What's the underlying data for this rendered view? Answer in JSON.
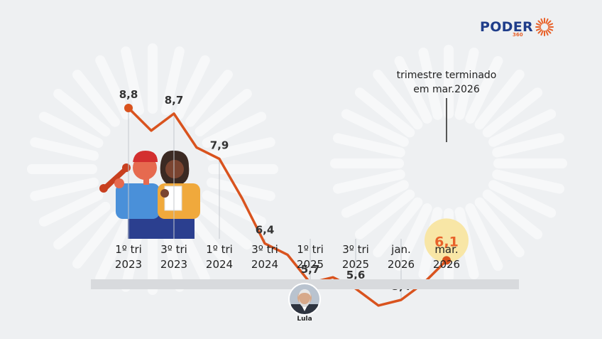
{
  "brand": {
    "name": "PODER",
    "suffix": "360"
  },
  "annotation": {
    "line1": "trimestre terminado",
    "line2": "em mar.2026"
  },
  "president": {
    "name": "Lula"
  },
  "colors": {
    "line": "#d9531e",
    "highlight": "#f8e6a6",
    "highlight_text": "#e8622a",
    "label_text": "#333333",
    "brand_blue": "#1f3d8a"
  },
  "chart_data": {
    "type": "line",
    "title": "",
    "xlabel": "",
    "ylabel": "",
    "grid": false,
    "ylim": [
      5.0,
      9.0
    ],
    "x": [
      "1º tri 2023",
      "",
      "3º tri 2023",
      "",
      "1º tri 2024",
      "",
      "3º tri 2024",
      "",
      "1º tri 2025",
      "",
      "3º tri 2025",
      "",
      "jan. 2026",
      "",
      "mar. 2026"
    ],
    "series": [
      {
        "values": [
          8.8,
          8.4,
          8.7,
          8.1,
          7.9,
          7.2,
          6.4,
          6.2,
          5.7,
          5.8,
          5.6,
          5.3,
          5.4,
          5.7,
          6.1
        ]
      }
    ],
    "labeled_points": [
      {
        "index": 0,
        "label": "8,8"
      },
      {
        "index": 2,
        "label": "8,7"
      },
      {
        "index": 4,
        "label": "7,9"
      },
      {
        "index": 6,
        "label": "6,4"
      },
      {
        "index": 8,
        "label": "5,7"
      },
      {
        "index": 10,
        "label": "5,6"
      },
      {
        "index": 12,
        "label": "5,4"
      },
      {
        "index": 14,
        "label": "6,1"
      }
    ],
    "ticks": [
      {
        "index": 0,
        "line1": "1º tri",
        "line2": "2023"
      },
      {
        "index": 2,
        "line1": "3º tri",
        "line2": "2023"
      },
      {
        "index": 4,
        "line1": "1º tri",
        "line2": "2024"
      },
      {
        "index": 6,
        "line1": "3º tri",
        "line2": "2024"
      },
      {
        "index": 8,
        "line1": "1º tri",
        "line2": "2025"
      },
      {
        "index": 10,
        "line1": "3º tri",
        "line2": "2025"
      },
      {
        "index": 12,
        "line1": "jan.",
        "line2": "2026"
      },
      {
        "index": 14,
        "line1": "mar.",
        "line2": "2026"
      }
    ]
  }
}
